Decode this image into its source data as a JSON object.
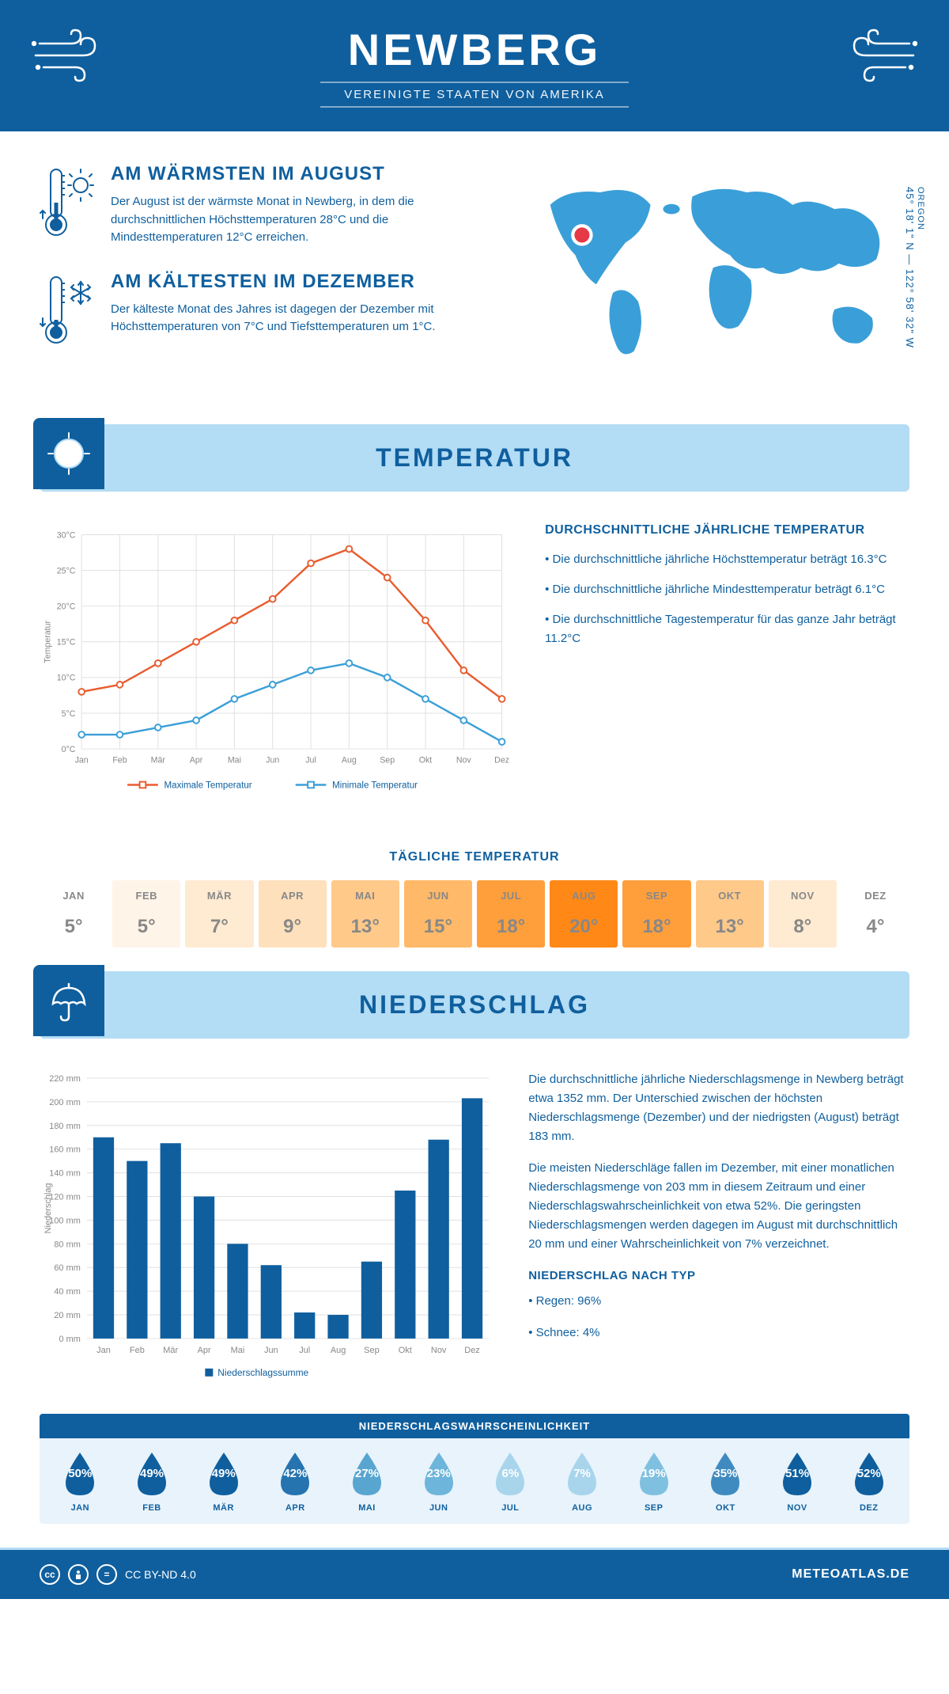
{
  "header": {
    "city": "NEWBERG",
    "country": "VEREINIGTE STAATEN VON AMERIKA"
  },
  "coords": {
    "state": "OREGON",
    "lat_lon": "45° 18' 1\" N — 122° 58' 32\" W"
  },
  "warmest": {
    "title": "AM WÄRMSTEN IM AUGUST",
    "text": "Der August ist der wärmste Monat in Newberg, in dem die durchschnittlichen Höchsttemperaturen 28°C und die Mindesttemperaturen 12°C erreichen."
  },
  "coldest": {
    "title": "AM KÄLTESTEN IM DEZEMBER",
    "text": "Der kälteste Monat des Jahres ist dagegen der Dezember mit Höchsttemperaturen von 7°C und Tiefsttemperaturen um 1°C."
  },
  "temperatur": {
    "banner": "TEMPERATUR",
    "chart": {
      "type": "line",
      "months": [
        "Jan",
        "Feb",
        "Mär",
        "Apr",
        "Mai",
        "Jun",
        "Jul",
        "Aug",
        "Sep",
        "Okt",
        "Nov",
        "Dez"
      ],
      "max_values": [
        8,
        9,
        12,
        15,
        18,
        21,
        26,
        28,
        24,
        18,
        11,
        7
      ],
      "min_values": [
        2,
        2,
        3,
        4,
        7,
        9,
        11,
        12,
        10,
        7,
        4,
        1
      ],
      "max_color": "#e85c2e",
      "min_color": "#3a9fd8",
      "ylim": [
        0,
        30
      ],
      "ytick_step": 5,
      "y_unit": "°C",
      "y_title": "Temperatur",
      "legend_max": "Maximale Temperatur",
      "legend_min": "Minimale Temperatur",
      "grid_color": "#e0e0e0",
      "bg": "#ffffff"
    },
    "info_title": "DURCHSCHNITTLICHE JÄHRLICHE TEMPERATUR",
    "info_lines": [
      "• Die durchschnittliche jährliche Höchsttemperatur beträgt 16.3°C",
      "• Die durchschnittliche jährliche Mindesttemperatur beträgt 6.1°C",
      "• Die durchschnittliche Tagestemperatur für das ganze Jahr beträgt 11.2°C"
    ],
    "daily_title": "TÄGLICHE TEMPERATUR",
    "daily": {
      "months": [
        "JAN",
        "FEB",
        "MÄR",
        "APR",
        "MAI",
        "JUN",
        "JUL",
        "AUG",
        "SEP",
        "OKT",
        "NOV",
        "DEZ"
      ],
      "values": [
        "5°",
        "5°",
        "7°",
        "9°",
        "13°",
        "15°",
        "18°",
        "20°",
        "18°",
        "13°",
        "8°",
        "4°"
      ],
      "colors": [
        "#ffffff",
        "#fff4e8",
        "#ffead2",
        "#ffe0bc",
        "#ffc98a",
        "#ffb968",
        "#ff9f3c",
        "#ff8817",
        "#ff9f3c",
        "#ffc98a",
        "#ffead2",
        "#ffffff"
      ]
    }
  },
  "niederschlag": {
    "banner": "NIEDERSCHLAG",
    "chart": {
      "type": "bar",
      "months": [
        "Jan",
        "Feb",
        "Mär",
        "Apr",
        "Mai",
        "Jun",
        "Jul",
        "Aug",
        "Sep",
        "Okt",
        "Nov",
        "Dez"
      ],
      "values": [
        170,
        150,
        165,
        120,
        80,
        62,
        22,
        20,
        65,
        125,
        168,
        203
      ],
      "ylim": [
        0,
        220
      ],
      "ytick_step": 20,
      "y_unit": " mm",
      "y_title": "Niederschlag",
      "bar_color": "#0f5f9e",
      "legend": "Niederschlagssumme",
      "grid_color": "#e0e0e0"
    },
    "para1": "Die durchschnittliche jährliche Niederschlagsmenge in Newberg beträgt etwa 1352 mm. Der Unterschied zwischen der höchsten Niederschlagsmenge (Dezember) und der niedrigsten (August) beträgt 183 mm.",
    "para2": "Die meisten Niederschläge fallen im Dezember, mit einer monatlichen Niederschlagsmenge von 203 mm in diesem Zeitraum und einer Niederschlagswahrscheinlichkeit von etwa 52%. Die geringsten Niederschlagsmengen werden dagegen im August mit durchschnittlich 20 mm und einer Wahrscheinlichkeit von 7% verzeichnet.",
    "type_title": "NIEDERSCHLAG NACH TYP",
    "type_lines": [
      "• Regen: 96%",
      "• Schnee: 4%"
    ],
    "prob_title": "NIEDERSCHLAGSWAHRSCHEINLICHKEIT",
    "prob": {
      "months": [
        "JAN",
        "FEB",
        "MÄR",
        "APR",
        "MAI",
        "JUN",
        "JUL",
        "AUG",
        "SEP",
        "OKT",
        "NOV",
        "DEZ"
      ],
      "values": [
        "50%",
        "49%",
        "49%",
        "42%",
        "27%",
        "23%",
        "6%",
        "7%",
        "19%",
        "35%",
        "51%",
        "52%"
      ],
      "colors": [
        "#0f5f9e",
        "#0f5f9e",
        "#0f5f9e",
        "#2574b0",
        "#58a5d0",
        "#6db5da",
        "#a8d5ec",
        "#a8d5ec",
        "#7fc0e0",
        "#3f8bc0",
        "#0f5f9e",
        "#0f5f9e"
      ]
    }
  },
  "footer": {
    "license": "CC BY-ND 4.0",
    "site": "METEOATLAS.DE"
  },
  "colors": {
    "primary": "#0f5f9e",
    "light_blue": "#b3dcf5",
    "orange": "#e85c2e"
  }
}
